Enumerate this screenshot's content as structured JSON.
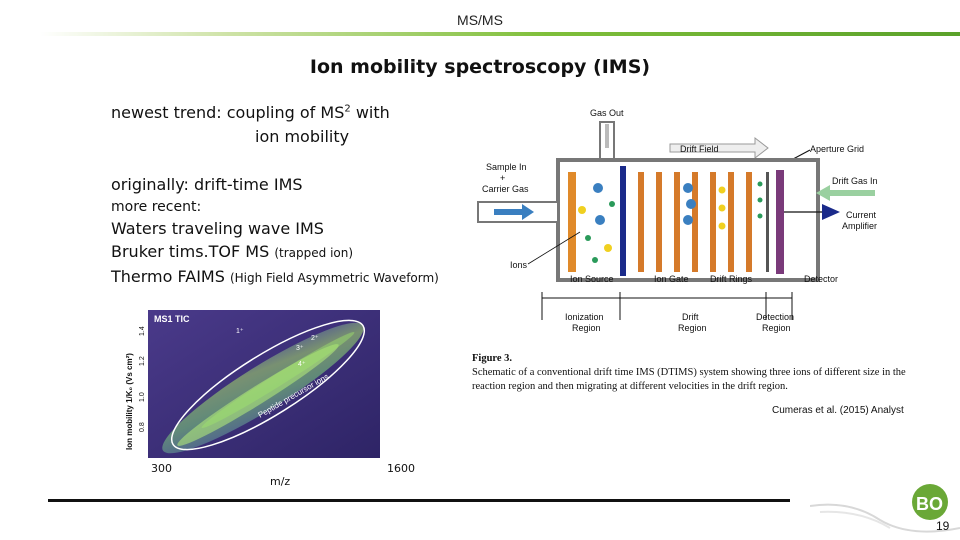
{
  "header": {
    "title": "MS/MS"
  },
  "slide": {
    "title": "Ion mobility spectroscopy (IMS)",
    "trend_line1_pre": "newest trend:  coupling of MS",
    "trend_sup": "2",
    "trend_line1_post": " with",
    "trend_line2": "ion mobility",
    "originally": "originally: drift-time IMS",
    "more_recent": "more recent:",
    "item1": "Waters traveling wave IMS",
    "item2": "Bruker tims.TOF MS",
    "item2_note": "(trapped ion)",
    "item3": "Thermo FAIMS",
    "item3_note": "(High Field Asymmetric Waveform)"
  },
  "heatmap": {
    "panel_label": "MS1 TIC",
    "ylabel": "Ion mobility 1/K₀ (Vs cm²)",
    "yticks": [
      "0.8",
      "1.0",
      "1.2",
      "1.4"
    ],
    "band_label": "Peptide precursor ions",
    "charge_labels": [
      "1⁺",
      "2⁺",
      "3⁺",
      "4⁺"
    ],
    "x_min_label": "300",
    "x_max_label": "1600",
    "x_axis_label": "m/z"
  },
  "schematic": {
    "gas_out": "Gas Out",
    "drift_field": "Drift Field",
    "aperture_grid": "Aperture Grid",
    "sample_in": "Sample In",
    "plus": "+",
    "carrier_gas": "Carrier Gas",
    "drift_gas_in": "Drift Gas In",
    "current": "Current",
    "amplifier": "Amplifier",
    "ions": "Ions",
    "ion_source": "Ion Source",
    "ion_gate": "Ion Gate",
    "drift_rings": "Drift Rings",
    "detector": "Detector",
    "ionization": "Ionization",
    "drift": "Drift",
    "detection": "Detection",
    "region": "Region"
  },
  "caption": {
    "label": "Figure 3.",
    "text": "Schematic of a conventional drift time IMS (DTIMS) system showing three ions of different size in the reaction region and then migrating at different velocities in the drift region."
  },
  "citation": "Cumeras et al. (2015) Analyst",
  "footer": {
    "page_number": "19",
    "logo_text": "BO"
  }
}
